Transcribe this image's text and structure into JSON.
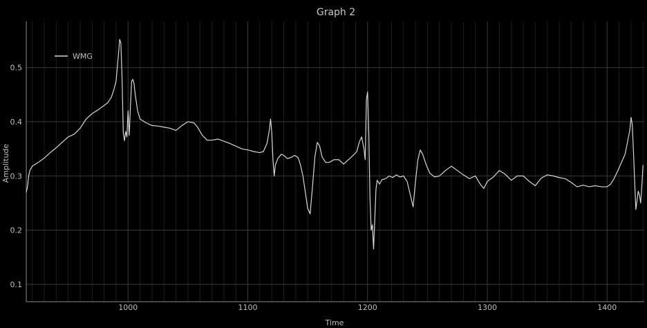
{
  "chart_data": {
    "type": "line",
    "title": "Graph 2",
    "xlabel": "Time",
    "ylabel": "Amplitude",
    "xlim": [
      915,
      1431
    ],
    "ylim": [
      0.068,
      0.585
    ],
    "xticks": [
      1000,
      1100,
      1200,
      1300,
      1400
    ],
    "yticks": [
      0.1,
      0.2,
      0.3,
      0.4,
      0.5
    ],
    "x_minor_step": 10,
    "grid": true,
    "legend_position": "top-left",
    "colors": {
      "background": "#000000",
      "line": "#d8d8d8",
      "major_grid": "#3a3a3a",
      "minor_grid": "#1e1e1e",
      "axis": "#8c8c8c"
    },
    "series": [
      {
        "name": "WMG",
        "points": [
          [
            915,
            0.27
          ],
          [
            916,
            0.28
          ],
          [
            917,
            0.3
          ],
          [
            918,
            0.31
          ],
          [
            920,
            0.318
          ],
          [
            925,
            0.325
          ],
          [
            930,
            0.333
          ],
          [
            935,
            0.343
          ],
          [
            940,
            0.352
          ],
          [
            945,
            0.362
          ],
          [
            950,
            0.372
          ],
          [
            955,
            0.377
          ],
          [
            960,
            0.388
          ],
          [
            965,
            0.405
          ],
          [
            970,
            0.415
          ],
          [
            975,
            0.422
          ],
          [
            980,
            0.43
          ],
          [
            983,
            0.435
          ],
          [
            986,
            0.445
          ],
          [
            988,
            0.458
          ],
          [
            990,
            0.475
          ],
          [
            991,
            0.5
          ],
          [
            992,
            0.525
          ],
          [
            993,
            0.552
          ],
          [
            994,
            0.545
          ],
          [
            995,
            0.48
          ],
          [
            996,
            0.38
          ],
          [
            997,
            0.365
          ],
          [
            998,
            0.382
          ],
          [
            999,
            0.372
          ],
          [
            1000,
            0.42
          ],
          [
            1001,
            0.375
          ],
          [
            1002,
            0.43
          ],
          [
            1003,
            0.475
          ],
          [
            1004,
            0.478
          ],
          [
            1005,
            0.47
          ],
          [
            1006,
            0.45
          ],
          [
            1008,
            0.42
          ],
          [
            1010,
            0.405
          ],
          [
            1015,
            0.398
          ],
          [
            1020,
            0.393
          ],
          [
            1025,
            0.392
          ],
          [
            1030,
            0.39
          ],
          [
            1035,
            0.388
          ],
          [
            1040,
            0.384
          ],
          [
            1045,
            0.393
          ],
          [
            1050,
            0.4
          ],
          [
            1055,
            0.398
          ],
          [
            1058,
            0.39
          ],
          [
            1062,
            0.375
          ],
          [
            1066,
            0.366
          ],
          [
            1070,
            0.366
          ],
          [
            1075,
            0.368
          ],
          [
            1080,
            0.364
          ],
          [
            1085,
            0.36
          ],
          [
            1090,
            0.355
          ],
          [
            1095,
            0.35
          ],
          [
            1100,
            0.348
          ],
          [
            1105,
            0.345
          ],
          [
            1110,
            0.343
          ],
          [
            1113,
            0.345
          ],
          [
            1116,
            0.36
          ],
          [
            1118,
            0.385
          ],
          [
            1119,
            0.405
          ],
          [
            1120,
            0.38
          ],
          [
            1121,
            0.33
          ],
          [
            1122,
            0.3
          ],
          [
            1123,
            0.32
          ],
          [
            1125,
            0.332
          ],
          [
            1128,
            0.34
          ],
          [
            1130,
            0.338
          ],
          [
            1133,
            0.332
          ],
          [
            1136,
            0.334
          ],
          [
            1139,
            0.338
          ],
          [
            1142,
            0.334
          ],
          [
            1144,
            0.32
          ],
          [
            1146,
            0.3
          ],
          [
            1148,
            0.27
          ],
          [
            1150,
            0.24
          ],
          [
            1152,
            0.23
          ],
          [
            1154,
            0.28
          ],
          [
            1156,
            0.335
          ],
          [
            1158,
            0.362
          ],
          [
            1160,
            0.355
          ],
          [
            1162,
            0.335
          ],
          [
            1165,
            0.325
          ],
          [
            1168,
            0.325
          ],
          [
            1172,
            0.33
          ],
          [
            1176,
            0.33
          ],
          [
            1180,
            0.322
          ],
          [
            1184,
            0.33
          ],
          [
            1188,
            0.338
          ],
          [
            1191,
            0.345
          ],
          [
            1193,
            0.362
          ],
          [
            1195,
            0.372
          ],
          [
            1197,
            0.35
          ],
          [
            1198,
            0.33
          ],
          [
            1199,
            0.44
          ],
          [
            1200,
            0.455
          ],
          [
            1201,
            0.38
          ],
          [
            1202,
            0.26
          ],
          [
            1203,
            0.2
          ],
          [
            1204,
            0.21
          ],
          [
            1205,
            0.165
          ],
          [
            1206,
            0.22
          ],
          [
            1207,
            0.275
          ],
          [
            1208,
            0.292
          ],
          [
            1210,
            0.285
          ],
          [
            1212,
            0.293
          ],
          [
            1215,
            0.295
          ],
          [
            1218,
            0.3
          ],
          [
            1221,
            0.297
          ],
          [
            1224,
            0.302
          ],
          [
            1227,
            0.298
          ],
          [
            1230,
            0.3
          ],
          [
            1233,
            0.29
          ],
          [
            1236,
            0.262
          ],
          [
            1238,
            0.243
          ],
          [
            1240,
            0.29
          ],
          [
            1242,
            0.33
          ],
          [
            1244,
            0.348
          ],
          [
            1246,
            0.34
          ],
          [
            1249,
            0.32
          ],
          [
            1252,
            0.305
          ],
          [
            1256,
            0.298
          ],
          [
            1260,
            0.3
          ],
          [
            1265,
            0.31
          ],
          [
            1270,
            0.318
          ],
          [
            1275,
            0.31
          ],
          [
            1280,
            0.302
          ],
          [
            1285,
            0.295
          ],
          [
            1290,
            0.3
          ],
          [
            1294,
            0.285
          ],
          [
            1297,
            0.277
          ],
          [
            1300,
            0.29
          ],
          [
            1305,
            0.298
          ],
          [
            1310,
            0.31
          ],
          [
            1315,
            0.303
          ],
          [
            1320,
            0.292
          ],
          [
            1325,
            0.3
          ],
          [
            1330,
            0.3
          ],
          [
            1335,
            0.29
          ],
          [
            1340,
            0.282
          ],
          [
            1345,
            0.296
          ],
          [
            1350,
            0.302
          ],
          [
            1355,
            0.3
          ],
          [
            1360,
            0.297
          ],
          [
            1365,
            0.295
          ],
          [
            1370,
            0.288
          ],
          [
            1375,
            0.28
          ],
          [
            1380,
            0.283
          ],
          [
            1385,
            0.28
          ],
          [
            1390,
            0.282
          ],
          [
            1395,
            0.28
          ],
          [
            1400,
            0.28
          ],
          [
            1403,
            0.285
          ],
          [
            1406,
            0.296
          ],
          [
            1409,
            0.31
          ],
          [
            1412,
            0.325
          ],
          [
            1415,
            0.34
          ],
          [
            1417,
            0.362
          ],
          [
            1419,
            0.385
          ],
          [
            1420,
            0.408
          ],
          [
            1421,
            0.395
          ],
          [
            1422,
            0.345
          ],
          [
            1423,
            0.29
          ],
          [
            1424,
            0.238
          ],
          [
            1425,
            0.255
          ],
          [
            1426,
            0.272
          ],
          [
            1427,
            0.265
          ],
          [
            1428,
            0.25
          ],
          [
            1429,
            0.282
          ],
          [
            1430,
            0.32
          ]
        ]
      }
    ]
  }
}
